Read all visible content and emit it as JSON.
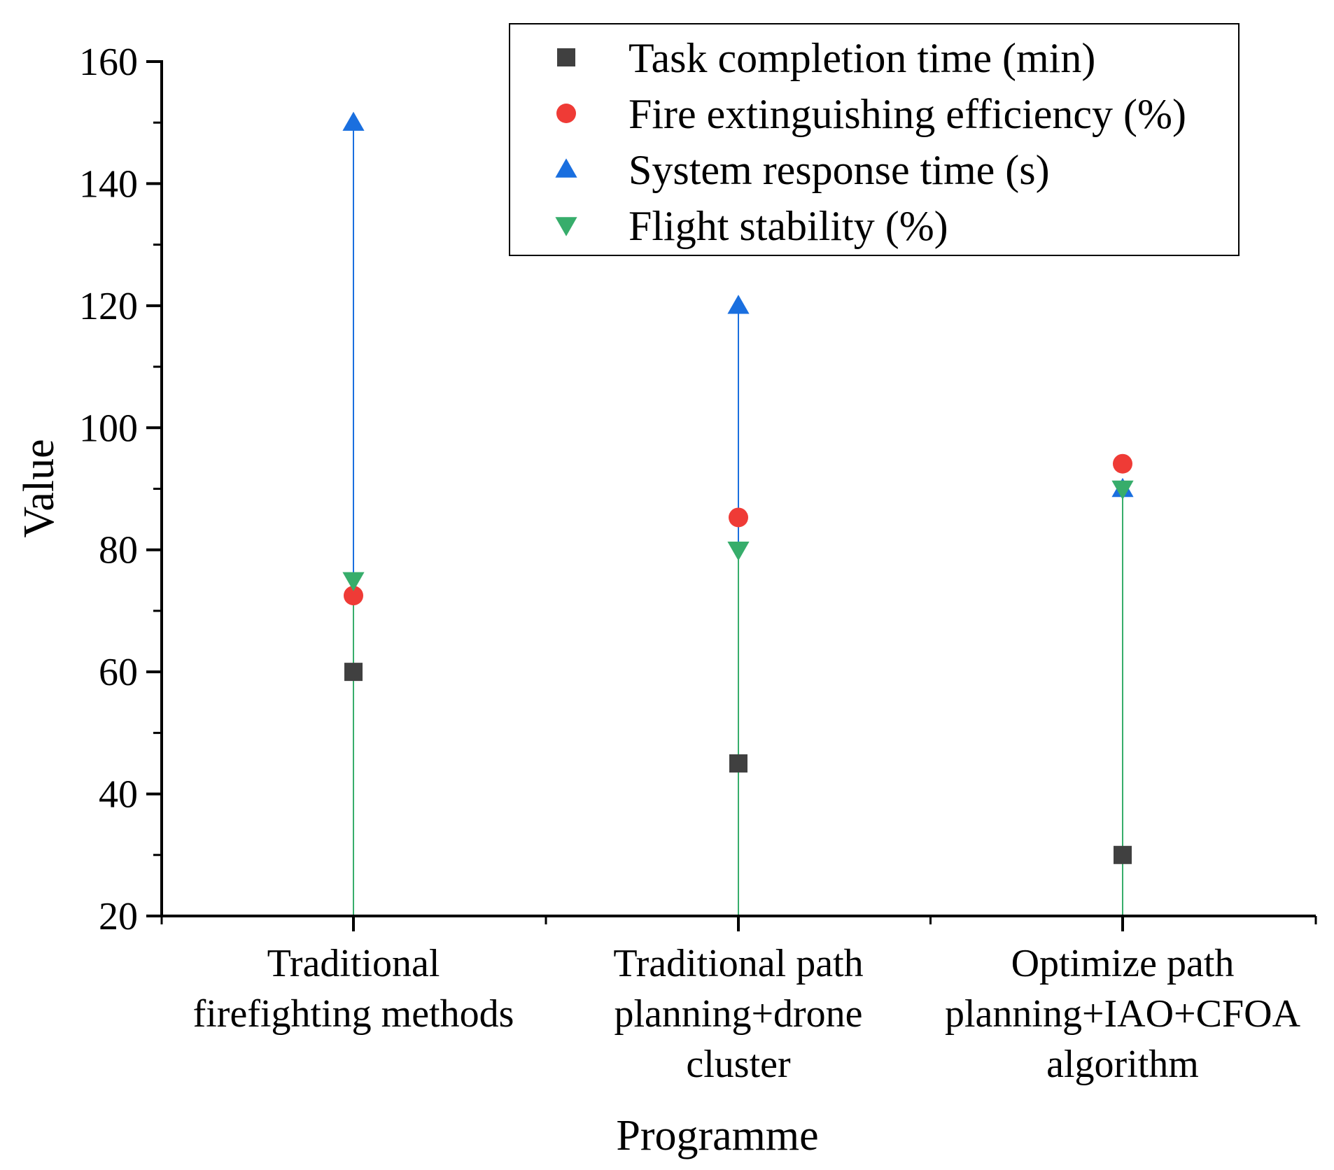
{
  "chart_data": {
    "type": "scatter",
    "title": "",
    "xlabel": "Programme",
    "ylabel": "Value",
    "ylim": [
      20,
      160
    ],
    "yticks": [
      20,
      40,
      60,
      80,
      100,
      120,
      140,
      160
    ],
    "ytick_labels": [
      "20",
      "40",
      "60",
      "80",
      "100",
      "120",
      "140",
      "160"
    ],
    "categories": [
      [
        "Traditional",
        "firefighting methods"
      ],
      [
        "Traditional path",
        "planning+drone",
        "cluster"
      ],
      [
        "Optimize path",
        "planning+IAO+CFOA",
        "algorithm"
      ]
    ],
    "legend_position": "top-right",
    "series": [
      {
        "name": "Task completion time (min)",
        "marker": "square",
        "color": "#404040",
        "values": [
          60,
          45,
          30
        ],
        "drop_lines": false
      },
      {
        "name": "Fire extinguishing efficiency (%)",
        "marker": "circle",
        "color": "#ef3b36",
        "values": [
          72.5,
          85.3,
          94.1
        ],
        "drop_lines": false
      },
      {
        "name": "System response time (s)",
        "marker": "triangle-up",
        "color": "#1a6fdf",
        "values": [
          150,
          120,
          90
        ],
        "drop_lines": true
      },
      {
        "name": "Flight stability (%)",
        "marker": "triangle-down",
        "color": "#37ad6b",
        "values": [
          75,
          80,
          90
        ],
        "drop_lines": true
      }
    ]
  }
}
